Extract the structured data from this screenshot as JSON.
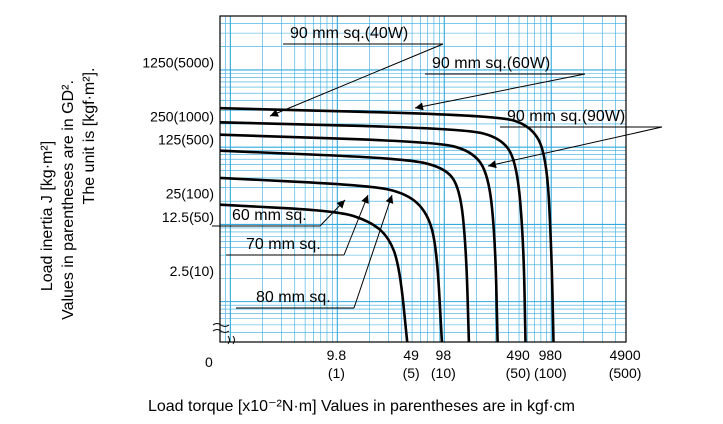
{
  "chart_data": {
    "type": "line",
    "xscale": "log",
    "yscale": "log",
    "x_unit": "x10^-2 N·m",
    "y_unit": "kg·m^2",
    "xlim": [
      0.8,
      5000
    ],
    "ylim": [
      0.3,
      5000
    ],
    "x_ticks": [
      {
        "value": 9.8,
        "label": "9.8",
        "sub": "(1)"
      },
      {
        "value": 49,
        "label": "49",
        "sub": "(5)"
      },
      {
        "value": 98,
        "label": "98",
        "sub": "(10)"
      },
      {
        "value": 490,
        "label": "490",
        "sub": "(50)"
      },
      {
        "value": 980,
        "label": "980",
        "sub": "(100)"
      },
      {
        "value": 4900,
        "label": "4900",
        "sub": "(500)"
      }
    ],
    "x_zero_label": "0",
    "y_ticks": [
      {
        "value": 2.5,
        "label": "2.5(10)"
      },
      {
        "value": 12.5,
        "label": "12.5(50)"
      },
      {
        "value": 25,
        "label": "25(100)"
      },
      {
        "value": 125,
        "label": "125(500)"
      },
      {
        "value": 250,
        "label": "250(1000)"
      },
      {
        "value": 1250,
        "label": "1250(5000)"
      }
    ],
    "ylabel": {
      "line1": "Load inertia J [kg·m²]",
      "line2": "Values in parentheses are in GD².",
      "line3": "The unit is [kgf·m²]."
    },
    "xlabel": "Load torque [x10⁻²N·m]  Values in parentheses are in kgf·cm",
    "series": [
      {
        "name": "60 mm sq.",
        "points": [
          [
            0.8,
            18
          ],
          [
            10,
            15
          ],
          [
            20,
            11
          ],
          [
            30,
            7
          ],
          [
            38,
            3
          ],
          [
            45,
            0.3
          ]
        ]
      },
      {
        "name": "70 mm sq.",
        "points": [
          [
            0.8,
            40
          ],
          [
            20,
            32
          ],
          [
            45,
            25
          ],
          [
            70,
            14
          ],
          [
            85,
            5
          ],
          [
            95,
            0.3
          ]
        ]
      },
      {
        "name": "80 mm sq.",
        "points": [
          [
            0.8,
            90
          ],
          [
            40,
            72
          ],
          [
            100,
            55
          ],
          [
            140,
            30
          ],
          [
            160,
            5
          ],
          [
            170,
            0.3
          ]
        ]
      },
      {
        "name": "90 mm sq.(40W)",
        "points": [
          [
            0.8,
            145
          ],
          [
            80,
            118
          ],
          [
            180,
            90
          ],
          [
            260,
            45
          ],
          [
            300,
            6
          ],
          [
            315,
            0.3
          ]
        ]
      },
      {
        "name": "90 mm sq.(60W)",
        "points": [
          [
            0.8,
            210
          ],
          [
            150,
            175
          ],
          [
            350,
            130
          ],
          [
            480,
            60
          ],
          [
            550,
            6
          ],
          [
            575,
            0.3
          ]
        ]
      },
      {
        "name": "90 mm sq.(90W)",
        "points": [
          [
            0.8,
            320
          ],
          [
            300,
            260
          ],
          [
            650,
            190
          ],
          [
            900,
            80
          ],
          [
            1000,
            6
          ],
          [
            1050,
            0.3
          ]
        ]
      }
    ]
  }
}
